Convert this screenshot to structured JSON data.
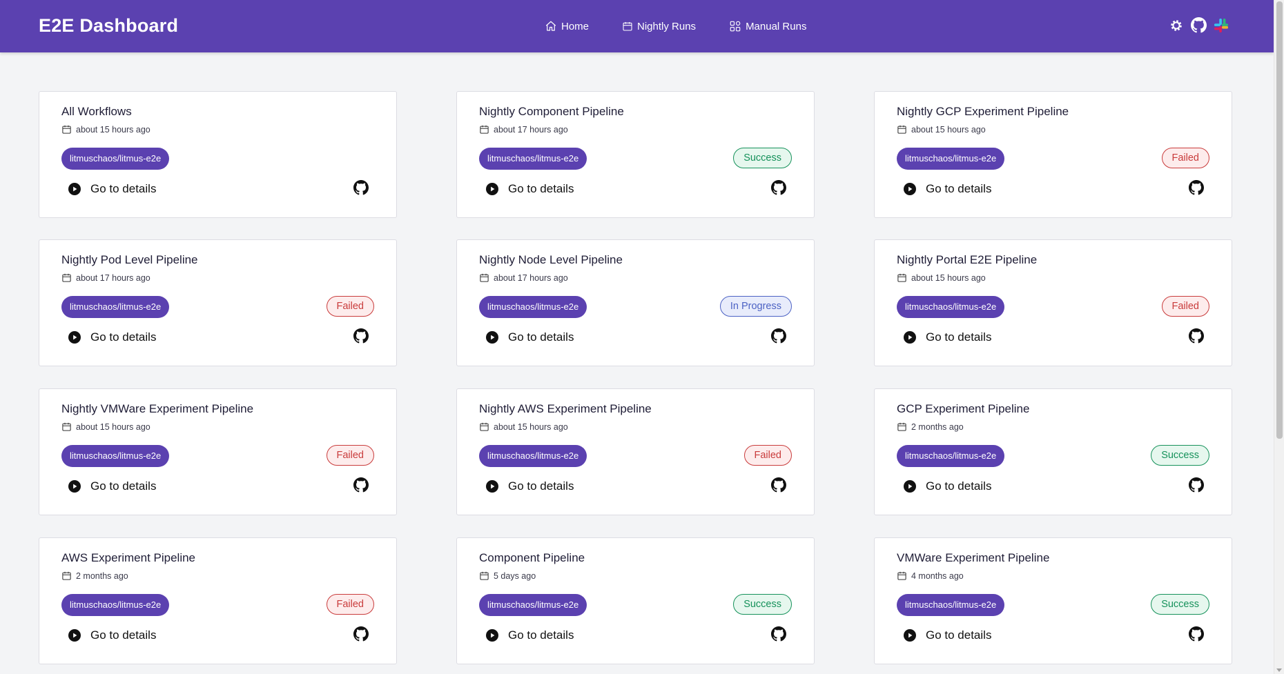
{
  "app": {
    "title": "E2E Dashboard"
  },
  "nav": [
    {
      "label": "Home",
      "icon": "home-icon"
    },
    {
      "label": "Nightly Runs",
      "icon": "calendar-icon"
    },
    {
      "label": "Manual Runs",
      "icon": "grid-icon"
    }
  ],
  "top_icons": [
    "settings-icon",
    "github-icon",
    "slack-icon"
  ],
  "colors": {
    "header": "#5b41b0",
    "tag": "#5b41b0",
    "success": "#15915a",
    "failed": "#c93b3b",
    "in_progress": "#4c62c4"
  },
  "card_action_label": "Go to details",
  "cards": [
    {
      "title": "All Workflows",
      "date": "about 15 hours ago",
      "repo": "litmuschaos/litmus-e2e",
      "status": ""
    },
    {
      "title": "Nightly Component Pipeline",
      "date": "about 17 hours ago",
      "repo": "litmuschaos/litmus-e2e",
      "status": "Success"
    },
    {
      "title": "Nightly GCP Experiment Pipeline",
      "date": "about 15 hours ago",
      "repo": "litmuschaos/litmus-e2e",
      "status": "Failed"
    },
    {
      "title": "Nightly Pod Level Pipeline",
      "date": "about 17 hours ago",
      "repo": "litmuschaos/litmus-e2e",
      "status": "Failed"
    },
    {
      "title": "Nightly Node Level Pipeline",
      "date": "about 17 hours ago",
      "repo": "litmuschaos/litmus-e2e",
      "status": "In Progress"
    },
    {
      "title": "Nightly Portal E2E Pipeline",
      "date": "about 15 hours ago",
      "repo": "litmuschaos/litmus-e2e",
      "status": "Failed"
    },
    {
      "title": "Nightly VMWare Experiment Pipeline",
      "date": "about 15 hours ago",
      "repo": "litmuschaos/litmus-e2e",
      "status": "Failed"
    },
    {
      "title": "Nightly AWS Experiment Pipeline",
      "date": "about 15 hours ago",
      "repo": "litmuschaos/litmus-e2e",
      "status": "Failed"
    },
    {
      "title": "GCP Experiment Pipeline",
      "date": "2 months ago",
      "repo": "litmuschaos/litmus-e2e",
      "status": "Success"
    },
    {
      "title": "AWS Experiment Pipeline",
      "date": "2 months ago",
      "repo": "litmuschaos/litmus-e2e",
      "status": "Failed"
    },
    {
      "title": "Component Pipeline",
      "date": "5 days ago",
      "repo": "litmuschaos/litmus-e2e",
      "status": "Success"
    },
    {
      "title": "VMWare Experiment Pipeline",
      "date": "4 months ago",
      "repo": "litmuschaos/litmus-e2e",
      "status": "Success"
    }
  ]
}
